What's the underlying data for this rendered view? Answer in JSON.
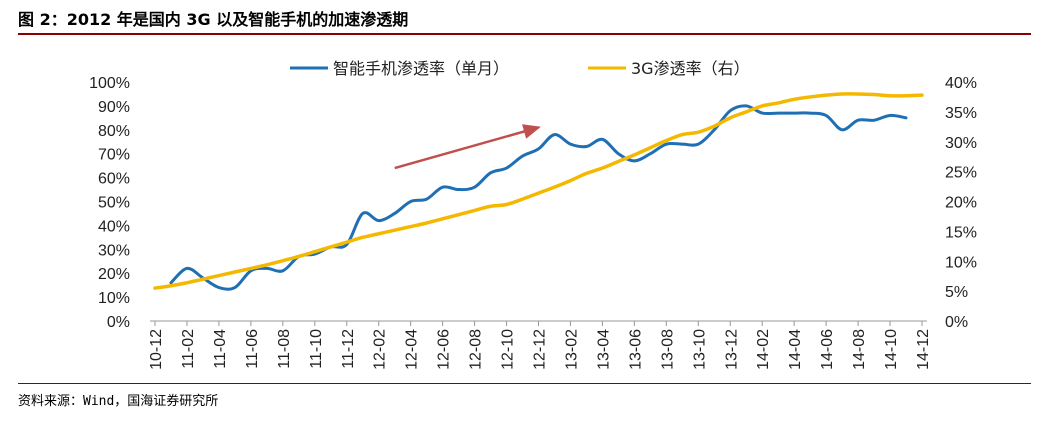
{
  "figure": {
    "title": "图 2：2012 年是国内 3G 以及智能手机的加速渗透期",
    "source": "资料来源：Wind，国海证券研究所"
  },
  "colors": {
    "smartphone": "#1F6FB5",
    "g3": "#F5B800",
    "arrow": "#C0504D",
    "title_rule": "#8B0000"
  },
  "chart_data": {
    "type": "line",
    "x": [
      "10-12",
      "11-01",
      "11-02",
      "11-03",
      "11-04",
      "11-05",
      "11-06",
      "11-07",
      "11-08",
      "11-09",
      "11-10",
      "11-11",
      "11-12",
      "12-01",
      "12-02",
      "12-03",
      "12-04",
      "12-05",
      "12-06",
      "12-07",
      "12-08",
      "12-09",
      "12-10",
      "12-11",
      "12-12",
      "13-01",
      "13-02",
      "13-03",
      "13-04",
      "13-05",
      "13-06",
      "13-07",
      "13-08",
      "13-09",
      "13-10",
      "13-11",
      "13-12",
      "14-01",
      "14-02",
      "14-03",
      "14-04",
      "14-05",
      "14-06",
      "14-07",
      "14-08",
      "14-09",
      "14-10",
      "14-11",
      "14-12"
    ],
    "xticks": [
      "10-12",
      "11-02",
      "11-04",
      "11-06",
      "11-08",
      "11-10",
      "11-12",
      "12-02",
      "12-04",
      "12-06",
      "12-08",
      "12-10",
      "12-12",
      "13-02",
      "13-04",
      "13-06",
      "13-08",
      "13-10",
      "13-12",
      "14-02",
      "14-04",
      "14-06",
      "14-08",
      "14-10",
      "14-12"
    ],
    "yticks_left": [
      "0%",
      "10%",
      "20%",
      "30%",
      "40%",
      "50%",
      "60%",
      "70%",
      "80%",
      "90%",
      "100%"
    ],
    "yticks_right": [
      "0%",
      "5%",
      "10%",
      "15%",
      "20%",
      "25%",
      "30%",
      "35%",
      "40%"
    ],
    "ylim_left": [
      0,
      100
    ],
    "ylim_right": [
      0,
      40
    ],
    "series": [
      {
        "name": "智能手机渗透率（单月）",
        "axis": "left",
        "values": [
          null,
          16,
          22,
          18,
          14,
          14,
          21,
          22,
          21,
          27,
          28,
          31,
          32,
          45,
          42,
          45,
          50,
          51,
          56,
          55,
          56,
          62,
          64,
          69,
          72,
          78,
          74,
          73,
          76,
          70,
          67,
          70,
          74,
          74,
          74,
          80,
          88,
          90,
          87,
          87,
          87,
          87,
          86,
          80,
          84,
          84,
          86,
          85,
          null
        ]
      },
      {
        "name": "3G渗透率（右）",
        "axis": "right",
        "values": [
          5.5,
          5.9,
          6.4,
          7.0,
          7.6,
          8.2,
          8.8,
          9.4,
          10.1,
          10.8,
          11.6,
          12.4,
          13.2,
          14.0,
          14.6,
          15.2,
          15.8,
          16.4,
          17.1,
          17.8,
          18.5,
          19.2,
          19.5,
          20.4,
          21.4,
          22.4,
          23.5,
          24.7,
          25.6,
          26.7,
          27.8,
          29.0,
          30.2,
          31.2,
          31.6,
          32.6,
          34.0,
          35.0,
          36.0,
          36.5,
          37.1,
          37.5,
          37.8,
          38.0,
          38.0,
          37.9,
          37.7,
          37.7,
          37.8
        ]
      }
    ],
    "annotations": [
      {
        "type": "arrow",
        "from": [
          "12-03",
          64
        ],
        "to": [
          "12-12",
          81
        ]
      }
    ],
    "legend": "top-center",
    "grid": false
  }
}
